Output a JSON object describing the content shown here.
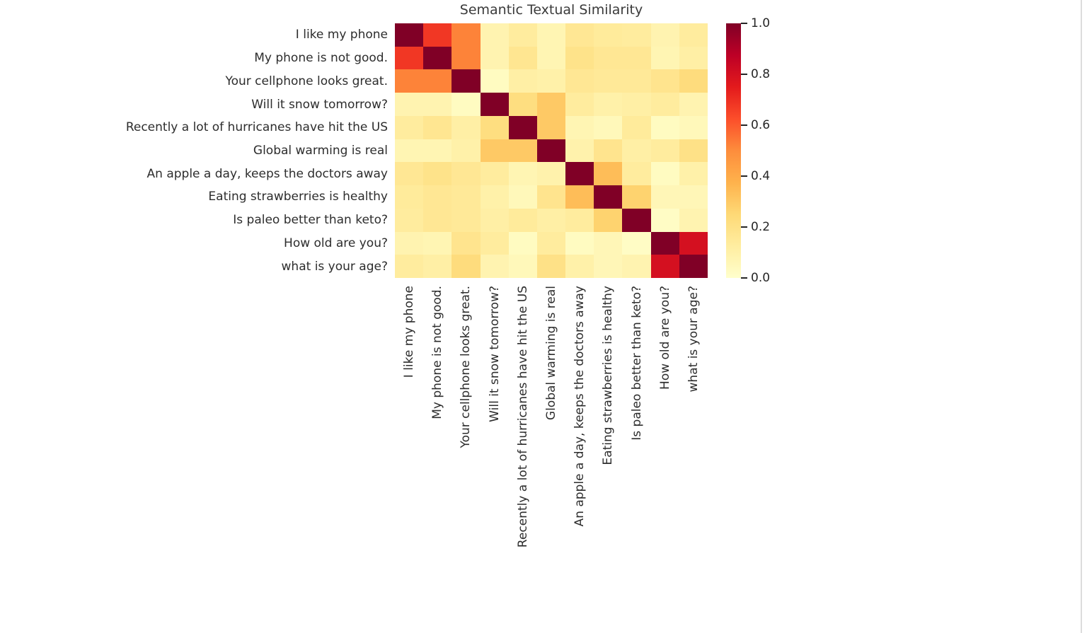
{
  "chart_data": {
    "type": "heatmap",
    "title": "Semantic Textual Similarity",
    "labels": [
      "I like my phone",
      "My phone is not good.",
      "Your cellphone looks great.",
      "Will it snow tomorrow?",
      "Recently a lot of hurricanes have hit the US",
      "Global warming is real",
      "An apple a day, keeps the doctors away",
      "Eating strawberries is healthy",
      "Is paleo better than keto?",
      "How old are you?",
      "what is your age?"
    ],
    "matrix": [
      [
        1.0,
        0.68,
        0.52,
        0.08,
        0.13,
        0.07,
        0.16,
        0.14,
        0.13,
        0.08,
        0.13
      ],
      [
        0.68,
        1.0,
        0.52,
        0.08,
        0.17,
        0.07,
        0.19,
        0.16,
        0.16,
        0.07,
        0.11
      ],
      [
        0.52,
        0.52,
        1.0,
        0.03,
        0.11,
        0.1,
        0.16,
        0.15,
        0.15,
        0.18,
        0.23
      ],
      [
        0.08,
        0.08,
        0.03,
        1.0,
        0.22,
        0.3,
        0.13,
        0.1,
        0.11,
        0.13,
        0.08
      ],
      [
        0.13,
        0.17,
        0.11,
        0.22,
        1.0,
        0.3,
        0.07,
        0.05,
        0.14,
        0.03,
        0.05
      ],
      [
        0.07,
        0.07,
        0.1,
        0.3,
        0.3,
        1.0,
        0.09,
        0.18,
        0.11,
        0.13,
        0.2
      ],
      [
        0.16,
        0.19,
        0.16,
        0.13,
        0.07,
        0.09,
        1.0,
        0.34,
        0.13,
        0.03,
        0.1
      ],
      [
        0.14,
        0.16,
        0.15,
        0.1,
        0.05,
        0.18,
        0.34,
        1.0,
        0.27,
        0.06,
        0.06
      ],
      [
        0.13,
        0.16,
        0.15,
        0.11,
        0.14,
        0.11,
        0.13,
        0.27,
        1.0,
        0.02,
        0.08
      ],
      [
        0.08,
        0.07,
        0.18,
        0.13,
        0.03,
        0.13,
        0.03,
        0.06,
        0.02,
        1.0,
        0.8
      ],
      [
        0.13,
        0.11,
        0.23,
        0.08,
        0.05,
        0.2,
        0.1,
        0.06,
        0.08,
        0.8,
        1.0
      ]
    ],
    "vmin": 0.0,
    "vmax": 1.0,
    "grid": false,
    "legend_position": "right-colorbar",
    "colormap": {
      "name": "YlOrRd",
      "stops": [
        {
          "pos": 0.0,
          "color": "#ffffcc"
        },
        {
          "pos": 0.125,
          "color": "#ffeda0"
        },
        {
          "pos": 0.25,
          "color": "#fed976"
        },
        {
          "pos": 0.375,
          "color": "#feb24c"
        },
        {
          "pos": 0.5,
          "color": "#fd8d3c"
        },
        {
          "pos": 0.625,
          "color": "#fc4e2a"
        },
        {
          "pos": 0.75,
          "color": "#e31a1c"
        },
        {
          "pos": 0.875,
          "color": "#bd0026"
        },
        {
          "pos": 1.0,
          "color": "#800026"
        }
      ]
    },
    "colorbar_ticks": [
      "1.0",
      "0.8",
      "0.6",
      "0.4",
      "0.2",
      "0.0"
    ]
  },
  "page": {
    "background": "#ffffff",
    "window_edge_color": "#dcdcdc",
    "title_color": "#3a3a3a",
    "tick_label_color": "#2d2d2d"
  }
}
